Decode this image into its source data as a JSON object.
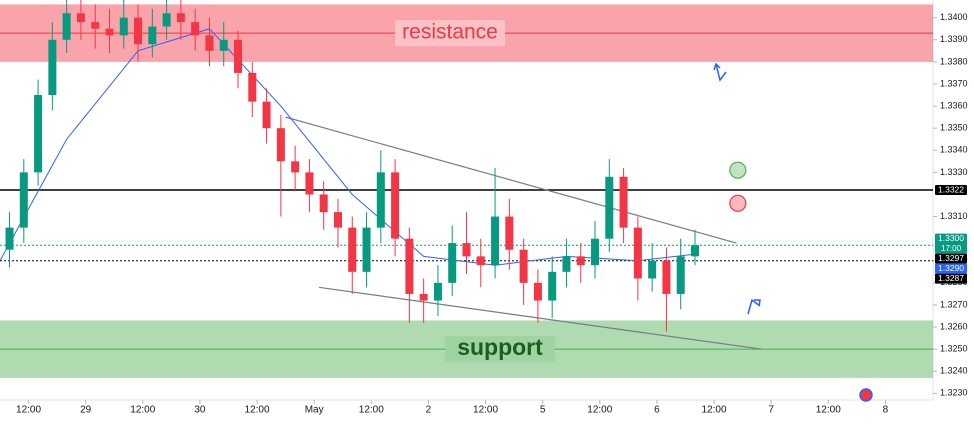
{
  "chart_data": {
    "type": "candlestick",
    "xlim": [
      6,
      202
    ],
    "ylim": [
      1.3227,
      1.3408
    ],
    "xticks": [
      {
        "value": 12,
        "label": "12:00"
      },
      {
        "value": 24,
        "label": "29"
      },
      {
        "value": 36,
        "label": "12:00"
      },
      {
        "value": 48,
        "label": "30"
      },
      {
        "value": 60,
        "label": "12:00"
      },
      {
        "value": 72,
        "label": "May"
      },
      {
        "value": 84,
        "label": "12:00"
      },
      {
        "value": 96,
        "label": "2"
      },
      {
        "value": 108,
        "label": "12:00"
      },
      {
        "value": 120,
        "label": "5"
      },
      {
        "value": 132,
        "label": "12:00"
      },
      {
        "value": 144,
        "label": "6"
      },
      {
        "value": 156,
        "label": "12:00"
      },
      {
        "value": 168,
        "label": "7"
      },
      {
        "value": 180,
        "label": "12:00"
      },
      {
        "value": 192,
        "label": "8"
      }
    ],
    "yticks": [
      {
        "value": 1.323,
        "label": "1.3230"
      },
      {
        "value": 1.324,
        "label": "1.3240"
      },
      {
        "value": 1.325,
        "label": "1.3250"
      },
      {
        "value": 1.326,
        "label": "1.3260"
      },
      {
        "value": 1.327,
        "label": "1.3270"
      },
      {
        "value": 1.328,
        "label": "1.3280"
      },
      {
        "value": 1.329,
        "label": "1.3290"
      },
      {
        "value": 1.331,
        "label": "1.3310"
      },
      {
        "value": 1.333,
        "label": "1.3330"
      },
      {
        "value": 1.334,
        "label": "1.3340"
      },
      {
        "value": 1.335,
        "label": "1.3350"
      },
      {
        "value": 1.336,
        "label": "1.3360"
      },
      {
        "value": 1.337,
        "label": "1.3370"
      },
      {
        "value": 1.338,
        "label": "1.3380"
      },
      {
        "value": 1.339,
        "label": "1.3390"
      },
      {
        "value": 1.34,
        "label": "1.3400"
      }
    ],
    "up_color": "#089981",
    "down_color": "#f23645",
    "x": [
      8,
      11,
      14,
      17,
      20,
      23,
      26,
      29,
      32,
      35,
      38,
      41,
      44,
      47,
      50,
      53,
      56,
      59,
      62,
      65,
      68,
      71,
      74,
      77,
      80,
      83,
      86,
      89,
      92,
      95,
      98,
      101,
      104,
      107,
      110,
      113,
      116,
      119,
      122,
      125,
      128,
      131,
      134,
      137,
      140,
      143,
      146,
      149,
      152
    ],
    "open": [
      1.3295,
      1.3305,
      1.333,
      1.3365,
      1.339,
      1.3402,
      1.3398,
      1.3395,
      1.3392,
      1.34,
      1.3388,
      1.3396,
      1.3402,
      1.3398,
      1.3392,
      1.3385,
      1.339,
      1.3375,
      1.3362,
      1.335,
      1.3335,
      1.333,
      1.332,
      1.3312,
      1.3305,
      1.3285,
      1.3305,
      1.333,
      1.33,
      1.3275,
      1.3272,
      1.328,
      1.3298,
      1.3292,
      1.3288,
      1.331,
      1.3295,
      1.328,
      1.3272,
      1.3285,
      1.3292,
      1.3288,
      1.33,
      1.3328,
      1.3305,
      1.3282,
      1.329,
      1.3275,
      1.3292
    ],
    "high": [
      1.3312,
      1.3336,
      1.3372,
      1.3398,
      1.341,
      1.341,
      1.3406,
      1.3404,
      1.341,
      1.3406,
      1.3404,
      1.341,
      1.341,
      1.3404,
      1.34,
      1.3398,
      1.3394,
      1.338,
      1.3368,
      1.3356,
      1.3342,
      1.3336,
      1.3326,
      1.3318,
      1.331,
      1.3312,
      1.334,
      1.3336,
      1.3305,
      1.3282,
      1.3288,
      1.3306,
      1.3312,
      1.33,
      1.3332,
      1.3318,
      1.33,
      1.3286,
      1.3292,
      1.33,
      1.3298,
      1.3308,
      1.3336,
      1.3332,
      1.331,
      1.3298,
      1.3296,
      1.33,
      1.3304
    ],
    "low": [
      1.3287,
      1.3298,
      1.3324,
      1.3358,
      1.3384,
      1.339,
      1.3386,
      1.3384,
      1.3386,
      1.338,
      1.3382,
      1.339,
      1.339,
      1.3385,
      1.3378,
      1.3378,
      1.3368,
      1.3355,
      1.3343,
      1.331,
      1.3322,
      1.3312,
      1.3304,
      1.3296,
      1.3275,
      1.3278,
      1.3298,
      1.3292,
      1.3262,
      1.3262,
      1.3265,
      1.3274,
      1.3284,
      1.3278,
      1.3282,
      1.3286,
      1.327,
      1.3262,
      1.3264,
      1.3278,
      1.328,
      1.3282,
      1.3294,
      1.3298,
      1.3272,
      1.3276,
      1.3258,
      1.3268,
      1.3288
    ],
    "close": [
      1.3305,
      1.333,
      1.3365,
      1.339,
      1.3402,
      1.3398,
      1.3395,
      1.3392,
      1.34,
      1.3388,
      1.3396,
      1.3402,
      1.3398,
      1.3392,
      1.3385,
      1.339,
      1.3375,
      1.3362,
      1.335,
      1.3335,
      1.333,
      1.332,
      1.3312,
      1.3305,
      1.3285,
      1.3305,
      1.333,
      1.33,
      1.3275,
      1.3272,
      1.328,
      1.3298,
      1.3292,
      1.3288,
      1.331,
      1.3295,
      1.328,
      1.3272,
      1.3285,
      1.3292,
      1.3288,
      1.33,
      1.3328,
      1.3305,
      1.3282,
      1.329,
      1.3275,
      1.3292,
      1.3297
    ],
    "moving_average": {
      "color": "#2962ff",
      "x": [
        6,
        20,
        35,
        50,
        65,
        80,
        95,
        110,
        125,
        140,
        152
      ],
      "values": [
        1.329,
        1.3345,
        1.3385,
        1.3395,
        1.336,
        1.332,
        1.3292,
        1.3288,
        1.3292,
        1.329,
        1.3293
      ]
    },
    "zones": [
      {
        "name": "resistance",
        "from": 1.338,
        "to": 1.3406,
        "mid": 1.3393,
        "color": "#f23645"
      },
      {
        "name": "support",
        "from": 1.3237,
        "to": 1.3263,
        "mid": 1.325,
        "color": "#4caf50"
      }
    ],
    "trendlines": [
      {
        "x": [
          66,
          160.7
        ],
        "values": [
          1.3355,
          1.3298
        ],
        "color": "#787b86"
      },
      {
        "x": [
          73,
          166
        ],
        "values": [
          1.3278,
          1.325
        ],
        "color": "#787b86"
      }
    ],
    "horizontal_lines": [
      {
        "value": 1.3322,
        "color": "#000000",
        "style": "solid"
      },
      {
        "value": 1.329,
        "color": "#000000",
        "style": "dotted"
      },
      {
        "value": 1.3297,
        "color": "#089981",
        "style": "dotted"
      }
    ],
    "price_tags": [
      {
        "value": 1.3322,
        "label": "1.3322",
        "color": "#000000"
      },
      {
        "value": 1.33,
        "label": "1.3300",
        "sublabel": "17:00",
        "color": "#089981"
      },
      {
        "value": 1.3297,
        "label": "1.3297",
        "color": "#000000"
      },
      {
        "value": 1.329,
        "label": "1.3290",
        "color": "#2962ff"
      },
      {
        "value": 1.3287,
        "label": "1.3287",
        "color": "#000000"
      }
    ],
    "signals": [
      {
        "x": 161,
        "value": 1.3331,
        "color": "#4caf50"
      },
      {
        "x": 161,
        "value": 1.3316,
        "color": "#f23645"
      }
    ]
  }
}
